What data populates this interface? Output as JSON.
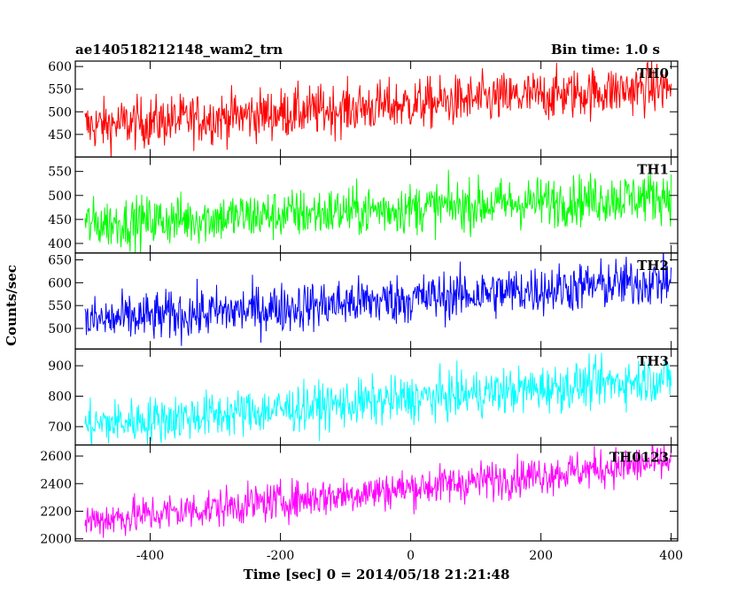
{
  "chart_data": {
    "type": "line",
    "title": "ae140518212148_wam2_trn",
    "subtitle": "Bin time: 1.0 s",
    "xlabel": "Time [sec] 0 = 2014/05/18 21:21:48",
    "ylabel": "Counts/sec",
    "xlim": [
      -515,
      410
    ],
    "x_ticks": [
      -400,
      -200,
      0,
      200,
      400
    ],
    "x_start": -500,
    "x_end": 400,
    "bin": 1.0,
    "grid": false,
    "panels": [
      {
        "name": "TH0",
        "color": "#ff0000",
        "ylim": [
          400,
          612
        ],
        "yticks": [
          450,
          500,
          550,
          600
        ],
        "start_mean": 468,
        "end_mean": 555,
        "noise": 28
      },
      {
        "name": "TH1",
        "color": "#00ff00",
        "ylim": [
          380,
          580
        ],
        "yticks": [
          400,
          450,
          500,
          550
        ],
        "start_mean": 440,
        "end_mean": 500,
        "noise": 26
      },
      {
        "name": "TH2",
        "color": "#0000ff",
        "ylim": [
          455,
          665
        ],
        "yticks": [
          500,
          550,
          600,
          650
        ],
        "start_mean": 515,
        "end_mean": 605,
        "noise": 27
      },
      {
        "name": "TH3",
        "color": "#00ffff",
        "ylim": [
          640,
          955
        ],
        "yticks": [
          700,
          800,
          900
        ],
        "start_mean": 705,
        "end_mean": 860,
        "noise": 38
      },
      {
        "name": "TH0123",
        "color": "#ff00ff",
        "ylim": [
          1985,
          2680
        ],
        "yticks": [
          2000,
          2200,
          2400,
          2600
        ],
        "start_mean": 2130,
        "end_mean": 2560,
        "noise": 70
      }
    ]
  }
}
